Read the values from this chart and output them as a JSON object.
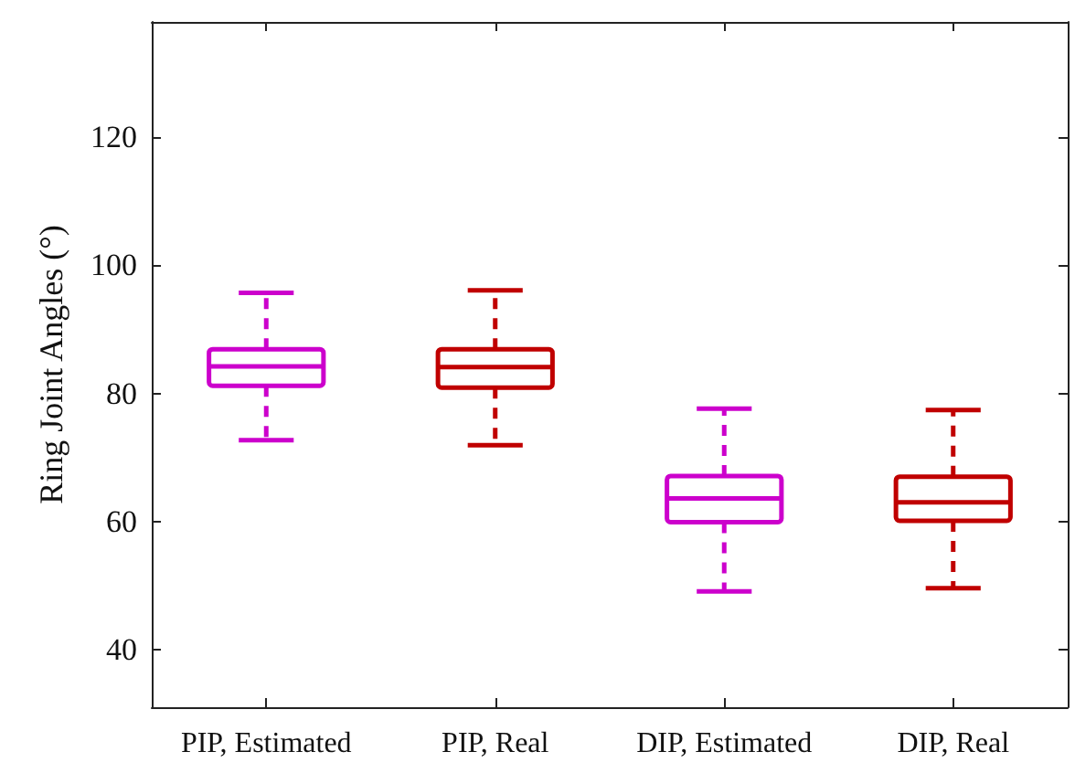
{
  "chart_data": {
    "type": "box",
    "ylabel": "Ring Joint Angles (°)",
    "categories": [
      "PIP, Estimated",
      "PIP, Real",
      "DIP, Estimated",
      "DIP, Real"
    ],
    "boxes": [
      {
        "low": 72.7,
        "q1": 81.2,
        "median": 84.2,
        "q3": 86.9,
        "high": 95.7
      },
      {
        "low": 71.9,
        "q1": 80.9,
        "median": 84.1,
        "q3": 86.9,
        "high": 96.1
      },
      {
        "low": 49.1,
        "q1": 59.9,
        "median": 63.6,
        "q3": 67.1,
        "high": 77.6
      },
      {
        "low": 49.6,
        "q1": 60.1,
        "median": 63.0,
        "q3": 67.0,
        "high": 77.4
      }
    ],
    "colors": [
      "#cc00cc",
      "#c00000",
      "#cc00cc",
      "#c00000"
    ],
    "ylim": [
      31,
      138
    ],
    "yticks": [
      40,
      60,
      80,
      100,
      120
    ],
    "grid": false,
    "line_style": "dashed"
  }
}
